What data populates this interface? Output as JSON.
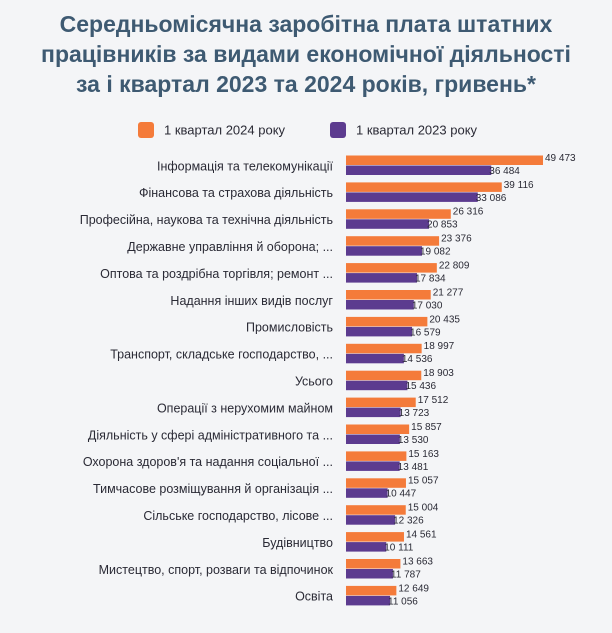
{
  "chart_data": {
    "type": "hbar",
    "title": [
      "Середньомісячна заробітна плата штатних",
      "працівників за видами економічної діяльності",
      "за і квартал 2023 та 2024 років, гривень*"
    ],
    "categories": [
      "Інформація та телекомунікації",
      "Фінансова та страхова діяльність",
      "Професійна, наукова та технічна діяльність",
      "Державне управління й оборона; ...",
      "Оптова та роздрібна торгівля; ремонт ...",
      "Надання інших видів послуг",
      "Промисловість",
      "Транспорт, складське господарство, ...",
      "Усього",
      "Операції з нерухомим майном",
      "Діяльність у сфері адміністративного та ...",
      "Охорона здоров'я та надання соціальної ...",
      "Тимчасове розміщування й організація ...",
      "Сільське господарство, лісове ...",
      "Будівництво",
      "Мистецтво, спорт, розваги та відпочинок",
      "Освіта"
    ],
    "series": [
      {
        "name": "1 квартал 2024 року",
        "color": "#f47b3a",
        "values": [
          49473,
          39116,
          26316,
          23376,
          22809,
          21277,
          20435,
          18997,
          18903,
          17512,
          15857,
          15163,
          15057,
          15004,
          14561,
          13663,
          12649
        ],
        "value_labels": [
          "49 473",
          "39 116",
          "26 316",
          "23 376",
          "22 809",
          "21 277",
          "20 435",
          "18 997",
          "18 903",
          "17 512",
          "15 857",
          "15 163",
          "15 057",
          "15 004",
          "14 561",
          "13 663",
          "12 649"
        ]
      },
      {
        "name": "1 квартал 2023 року",
        "color": "#5c3b8f",
        "values": [
          36484,
          33086,
          20853,
          19082,
          17834,
          17030,
          16579,
          14536,
          15436,
          13723,
          13530,
          13481,
          10447,
          12326,
          10111,
          11787,
          11056
        ],
        "value_labels": [
          "36 484",
          "33 086",
          "20 853",
          "19 082",
          "17 834",
          "17 030",
          "16 579",
          "14 536",
          "15 436",
          "13 723",
          "13 530",
          "13 481",
          "10 447",
          "12 326",
          "10 111",
          "11 787",
          "11 056"
        ]
      }
    ]
  }
}
